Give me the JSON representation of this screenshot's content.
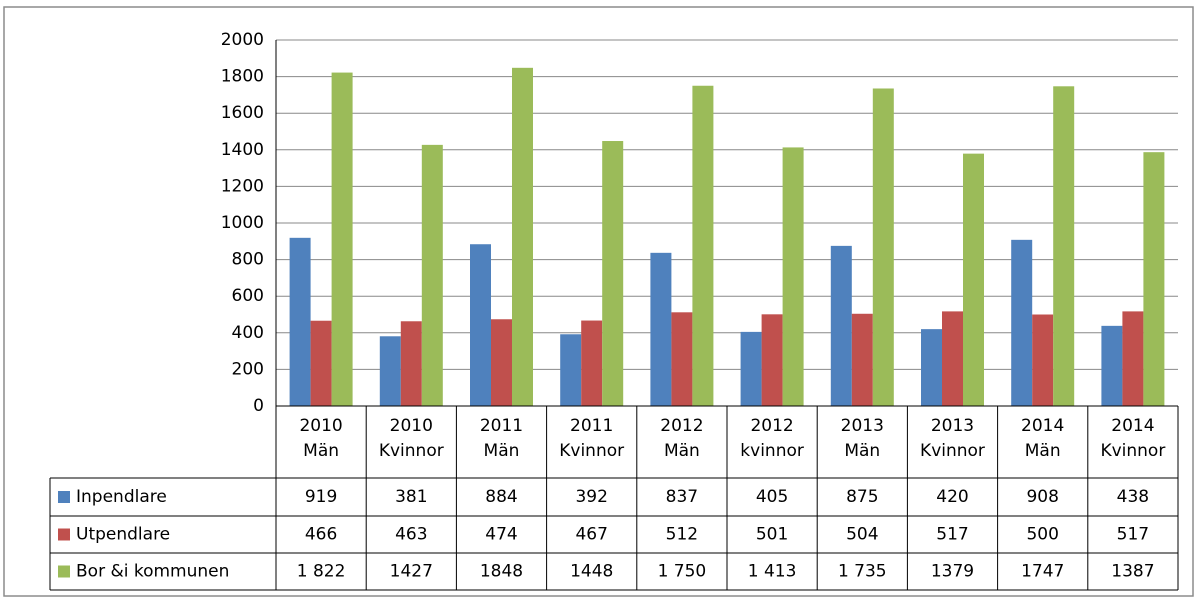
{
  "chart_data": {
    "type": "bar",
    "categories": [
      "2010 Män",
      "2010 Kvinnor",
      "2011 Män",
      "2011 Kvinnor",
      "2012 Män",
      "2012 kvinnor",
      "2013 Män",
      "2013 Kvinnor",
      "2014 Män",
      "2014 Kvinnor"
    ],
    "series": [
      {
        "name": "Inpendlare",
        "color": "#4f81bd",
        "values": [
          919,
          381,
          884,
          392,
          837,
          405,
          875,
          420,
          908,
          438
        ]
      },
      {
        "name": "Utpendlare",
        "color": "#c0504d",
        "values": [
          466,
          463,
          474,
          467,
          512,
          501,
          504,
          517,
          500,
          517
        ]
      },
      {
        "name": "Bor &i kommunen",
        "color": "#9bbb59",
        "values": [
          1822,
          1427,
          1848,
          1448,
          1750,
          1413,
          1735,
          1379,
          1747,
          1387
        ],
        "value_labels": [
          "1 822",
          "1427",
          "1848",
          "1448",
          "1 750",
          "1 413",
          "1 735",
          "1379",
          "1747",
          "1387"
        ]
      }
    ],
    "ylim": [
      0,
      2000
    ],
    "yticks": [
      0,
      200,
      400,
      600,
      800,
      1000,
      1200,
      1400,
      1600,
      1800,
      2000
    ],
    "grid": true
  }
}
